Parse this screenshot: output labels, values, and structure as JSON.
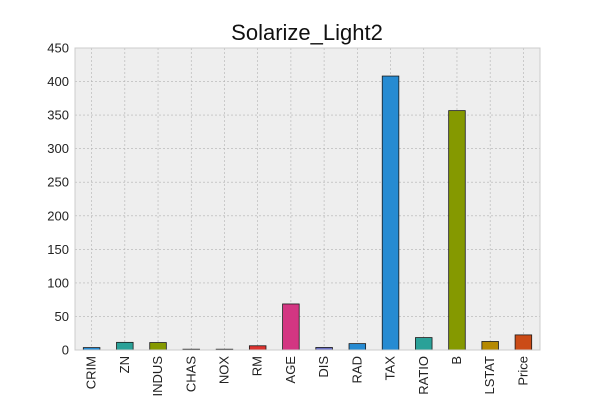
{
  "chart_data": {
    "type": "bar",
    "title": "Solarize_Light2",
    "xlabel": "",
    "ylabel": "",
    "categories": [
      "CRIM",
      "ZN",
      "INDUS",
      "CHAS",
      "NOX",
      "RM",
      "AGE",
      "DIS",
      "RAD",
      "TAX",
      "RATIO",
      "B",
      "LSTAT",
      "Price"
    ],
    "values": [
      3.6,
      11.4,
      11.1,
      0.07,
      0.55,
      6.3,
      68.6,
      3.8,
      9.5,
      408.2,
      18.5,
      356.7,
      12.7,
      22.5
    ],
    "bar_colors": [
      "#268bd2",
      "#2aa198",
      "#859900",
      "#b58900",
      "#cb4b16",
      "#dc322f",
      "#d33682",
      "#6c71c4",
      "#268bd2",
      "#268bd2",
      "#2aa198",
      "#859900",
      "#b58900",
      "#cb4b16"
    ],
    "yticks": [
      0,
      50,
      100,
      150,
      200,
      250,
      300,
      350,
      400,
      450
    ],
    "ylim": [
      0,
      450
    ],
    "grid": true,
    "legend": "none"
  },
  "colors": {
    "plot_background": "#eeeeee",
    "grid": "#b2b2b2",
    "bar_edge": "#1a1a1a"
  }
}
